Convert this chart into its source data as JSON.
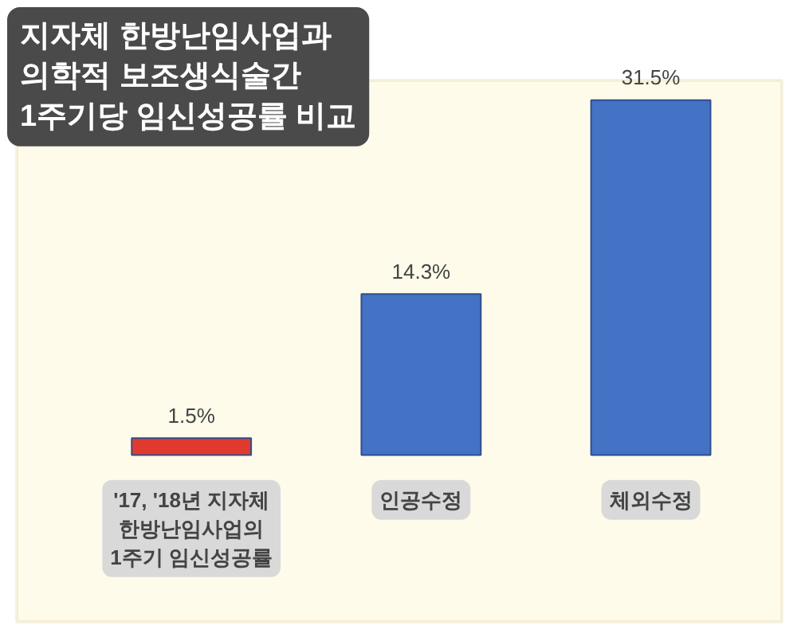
{
  "chart_data": {
    "type": "bar",
    "title": "지자체 한방난임사업과\n의학적 보조생식술간\n1주기당 임신성공률 비교",
    "categories": [
      "'17, '18년 지자체\n한방난임사업의\n1주기 임신성공률",
      "인공수정",
      "체외수정"
    ],
    "values": [
      1.5,
      14.3,
      31.5
    ],
    "colors": [
      "#e03a2f",
      "#4472c4",
      "#4472c4"
    ],
    "value_labels": [
      "1.5%",
      "14.3%",
      "31.5%"
    ]
  }
}
